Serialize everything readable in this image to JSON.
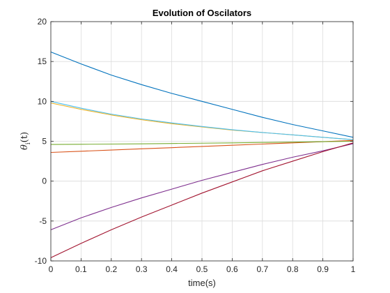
{
  "chart_data": {
    "type": "line",
    "title": "Evolution of Oscilators",
    "xlabel": "time(s)",
    "ylabel": {
      "main": "θ",
      "sub": "i",
      "suffix": "(t)"
    },
    "xlim": [
      0,
      1
    ],
    "ylim": [
      -10,
      20
    ],
    "xticks": [
      0,
      0.1,
      0.2,
      0.3,
      0.4,
      0.5,
      0.6,
      0.7,
      0.8,
      0.9,
      1
    ],
    "xtick_labels": [
      "0",
      "0.1",
      "0.2",
      "0.3",
      "0.4",
      "0.5",
      "0.6",
      "0.7",
      "0.8",
      "0.9",
      "1"
    ],
    "yticks": [
      -10,
      -5,
      0,
      5,
      10,
      15,
      20
    ],
    "ytick_labels": [
      "-10",
      "-5",
      "0",
      "5",
      "10",
      "15",
      "20"
    ],
    "grid": true,
    "legend": false,
    "x": [
      0,
      0.1,
      0.2,
      0.3,
      0.4,
      0.5,
      0.6,
      0.7,
      0.8,
      0.9,
      1.0
    ],
    "series": [
      {
        "color": "#0072bd",
        "values": [
          16.2,
          14.7,
          13.3,
          12.1,
          11.0,
          10.0,
          9.0,
          8.0,
          7.1,
          6.3,
          5.5
        ]
      },
      {
        "color": "#d95319",
        "values": [
          3.6,
          3.75,
          3.9,
          4.05,
          4.2,
          4.35,
          4.5,
          4.65,
          4.8,
          4.95,
          5.1
        ]
      },
      {
        "color": "#edb120",
        "values": [
          9.8,
          9.0,
          8.3,
          7.7,
          7.2,
          6.8,
          6.4,
          6.1,
          5.8,
          5.5,
          5.2
        ]
      },
      {
        "color": "#7e2f8e",
        "values": [
          -6.1,
          -4.6,
          -3.3,
          -2.1,
          -1.0,
          0.1,
          1.1,
          2.1,
          3.0,
          3.8,
          4.7
        ]
      },
      {
        "color": "#77ac30",
        "values": [
          4.6,
          4.62,
          4.65,
          4.68,
          4.72,
          4.76,
          4.8,
          4.85,
          4.9,
          4.95,
          5.0
        ]
      },
      {
        "color": "#4dbeee",
        "values": [
          10.0,
          9.15,
          8.4,
          7.8,
          7.3,
          6.85,
          6.45,
          6.1,
          5.8,
          5.5,
          5.2
        ]
      },
      {
        "color": "#a2142f",
        "values": [
          -9.6,
          -7.8,
          -6.1,
          -4.5,
          -3.0,
          -1.5,
          -0.1,
          1.3,
          2.5,
          3.7,
          4.8
        ]
      }
    ]
  }
}
